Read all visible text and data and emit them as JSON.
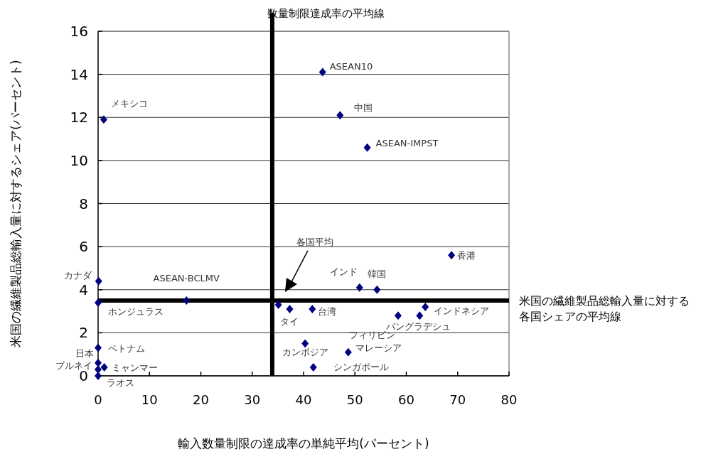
{
  "chart_data": {
    "type": "scatter",
    "xlabel": "輸入数量制限の達成率の単純平均(パーセント)",
    "ylabel": "米国の繊維製品総輸入量に対するシェア(パーセント)",
    "xlim": [
      0,
      80
    ],
    "xticks": [
      0,
      10,
      20,
      30,
      40,
      50,
      60,
      70,
      80
    ],
    "ylim": [
      0,
      16
    ],
    "yticks": [
      0,
      2,
      4,
      6,
      8,
      10,
      12,
      14,
      16
    ],
    "grid": "y",
    "marker": "diamond",
    "series": [
      {
        "color": "#000080",
        "x": [
          1.1,
          43.7,
          47.1,
          52.4,
          0.1,
          0,
          17.2,
          0,
          0,
          0,
          1.2,
          0,
          40.3,
          41.9,
          35.1,
          37.3,
          41.7,
          58.4,
          62.6,
          63.7,
          50.9,
          54.3,
          68.8,
          48.7
        ],
        "values": [
          11.9,
          14.1,
          12.1,
          10.6,
          4.4,
          3.4,
          3.5,
          1.3,
          0.6,
          0.3,
          0.4,
          0,
          1.5,
          0.4,
          3.3,
          3.1,
          3.1,
          2.8,
          2.8,
          3.2,
          4.1,
          4.0,
          5.6,
          1.1
        ]
      }
    ],
    "ref_lines": [
      {
        "axis": "x",
        "value": 33.9,
        "label": "数量制限達成率の平均線",
        "color": "#000000"
      },
      {
        "axis": "y",
        "value": 3.5,
        "label": "米国の繊維製品総輸入量に対する各国シェアの平均線",
        "color": "#000000"
      }
    ],
    "annotations": [
      {
        "text": "メキシコ",
        "x": 1.1,
        "y": 11.9
      },
      {
        "text": "ASEAN10",
        "x": 43.7,
        "y": 14.1
      },
      {
        "text": "中国",
        "x": 47.1,
        "y": 12.1
      },
      {
        "text": "ASEAN-IMPST",
        "x": 52.4,
        "y": 10.6
      },
      {
        "text": "カナダ",
        "x": 0.1,
        "y": 4.4
      },
      {
        "text": "ホンジュラス",
        "x": 0,
        "y": 3.4
      },
      {
        "text": "ASEAN-BCLMV",
        "x": 17.2,
        "y": 3.5
      },
      {
        "text": "ベトナム",
        "x": 0,
        "y": 1.3
      },
      {
        "text": "日本",
        "x": 0,
        "y": 0.6
      },
      {
        "text": "ブルネイ",
        "x": 0,
        "y": 0.3
      },
      {
        "text": "ミャンマー",
        "x": 1.2,
        "y": 0.4
      },
      {
        "text": "ラオス",
        "x": 0,
        "y": 0
      },
      {
        "text": "カンボジア",
        "x": 40.3,
        "y": 1.5
      },
      {
        "text": "シンガポール",
        "x": 41.9,
        "y": 0.4
      },
      {
        "text": "タイ",
        "x": 37.3,
        "y": 3.1
      },
      {
        "text": "台湾",
        "x": 41.7,
        "y": 3.1
      },
      {
        "text": "フィリピン",
        "x": 58.4,
        "y": 2.8
      },
      {
        "text": "バングラデシュ",
        "x": 62.6,
        "y": 2.8
      },
      {
        "text": "インドネシア",
        "x": 63.7,
        "y": 3.2
      },
      {
        "text": "インド",
        "x": 50.9,
        "y": 4.1
      },
      {
        "text": "韓国",
        "x": 54.3,
        "y": 4.0
      },
      {
        "text": "香港",
        "x": 68.8,
        "y": 5.6
      },
      {
        "text": "マレーシア",
        "x": 48.7,
        "y": 1.1
      },
      "各国平均"
    ]
  }
}
